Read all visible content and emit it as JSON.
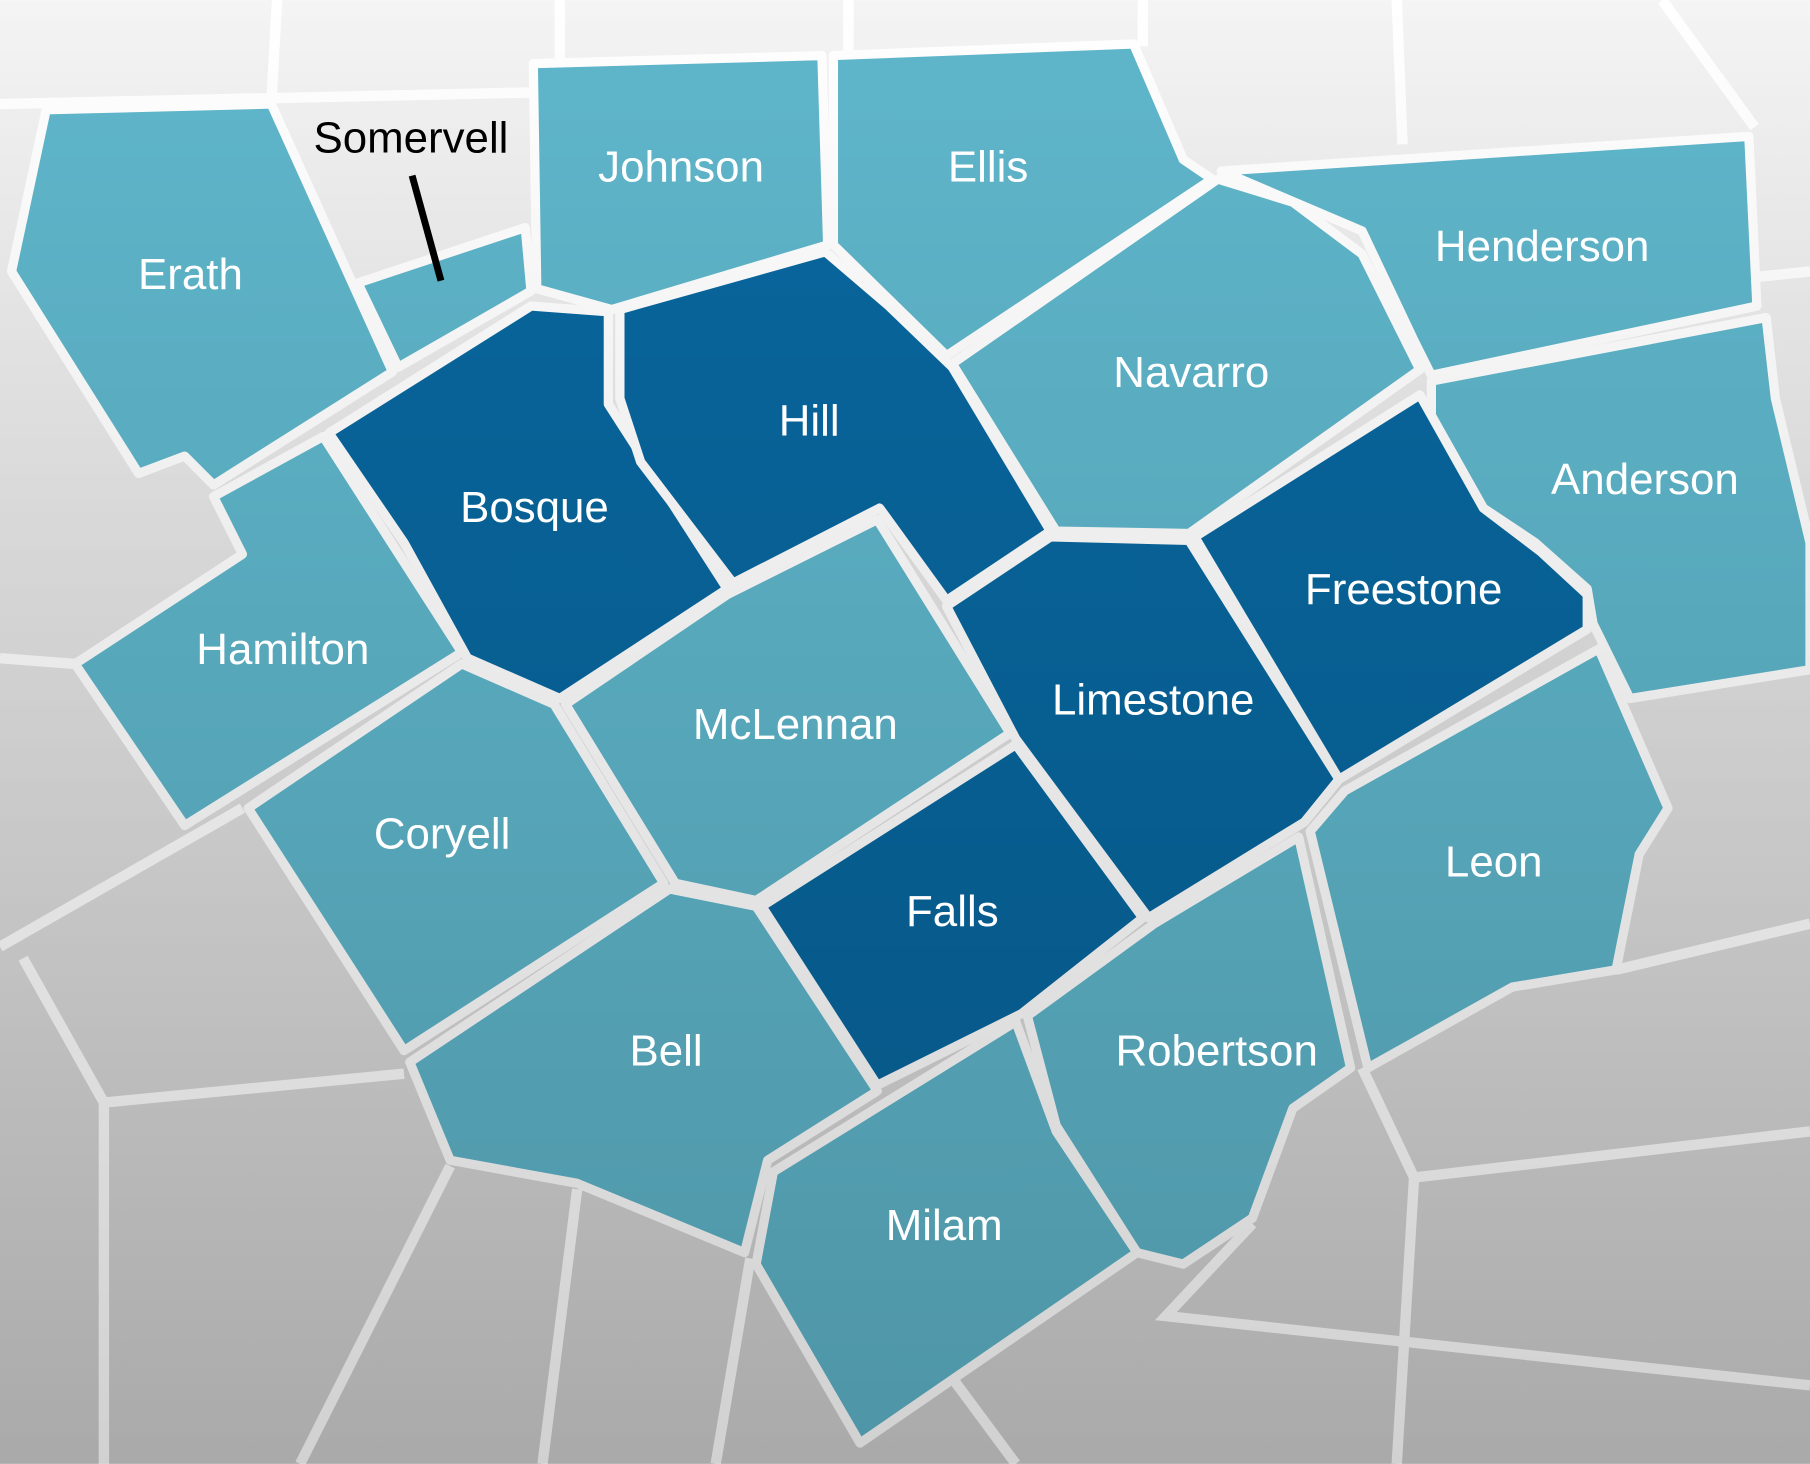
{
  "counties": [
    {
      "name": "Erath",
      "color": "#5fb6cb",
      "label_color": "#ffffff"
    },
    {
      "name": "Somervell",
      "color": "#5fb6cb",
      "label_color": "#000000"
    },
    {
      "name": "Johnson",
      "color": "#5fb6cb",
      "label_color": "#ffffff"
    },
    {
      "name": "Ellis",
      "color": "#5fb6cb",
      "label_color": "#ffffff"
    },
    {
      "name": "Henderson",
      "color": "#5fb6cb",
      "label_color": "#ffffff"
    },
    {
      "name": "Navarro",
      "color": "#5fb6cb",
      "label_color": "#ffffff"
    },
    {
      "name": "Anderson",
      "color": "#5fb6cb",
      "label_color": "#ffffff"
    },
    {
      "name": "Bosque",
      "color": "#08679f",
      "label_color": "#ffffff"
    },
    {
      "name": "Hill",
      "color": "#08679f",
      "label_color": "#ffffff"
    },
    {
      "name": "Hamilton",
      "color": "#5fb6cb",
      "label_color": "#ffffff"
    },
    {
      "name": "Freestone",
      "color": "#08679f",
      "label_color": "#ffffff"
    },
    {
      "name": "Limestone",
      "color": "#08679f",
      "label_color": "#ffffff"
    },
    {
      "name": "McLennan",
      "color": "#5fb6cb",
      "label_color": "#ffffff"
    },
    {
      "name": "Coryell",
      "color": "#5fb6cb",
      "label_color": "#ffffff"
    },
    {
      "name": "Falls",
      "color": "#08679f",
      "label_color": "#ffffff"
    },
    {
      "name": "Bell",
      "color": "#5fb6cb",
      "label_color": "#ffffff"
    },
    {
      "name": "Robertson",
      "color": "#5fb6cb",
      "label_color": "#ffffff"
    },
    {
      "name": "Leon",
      "color": "#5fb6cb",
      "label_color": "#ffffff"
    },
    {
      "name": "Milam",
      "color": "#5fb6cb",
      "label_color": "#ffffff"
    }
  ]
}
